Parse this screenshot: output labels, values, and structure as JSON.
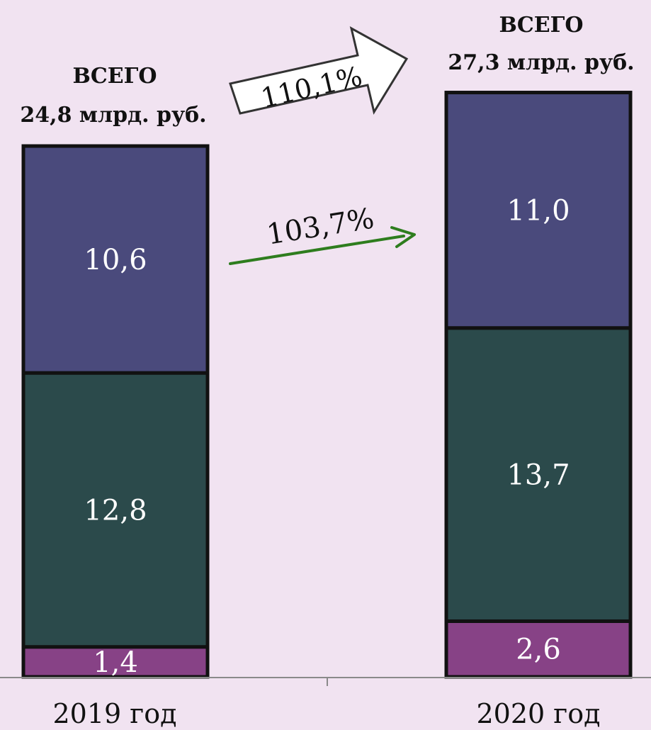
{
  "chart_data": {
    "type": "bar",
    "stacked": true,
    "categories": [
      "2019 год",
      "2020 год"
    ],
    "series": [
      {
        "values": [
          1.4,
          2.6
        ],
        "labels": [
          "1,4",
          "2,6"
        ],
        "color": "#874286"
      },
      {
        "values": [
          12.8,
          13.7
        ],
        "labels": [
          "12,8",
          "13,7"
        ],
        "color": "#2b4a4b"
      },
      {
        "values": [
          10.6,
          11.0
        ],
        "labels": [
          "10,6",
          "11,0"
        ],
        "color": "#4a4a7c"
      }
    ],
    "totals": {
      "heading": "ВСЕГО",
      "values": [
        24.8,
        27.3
      ],
      "labels": [
        "24,8 млрд. руб.",
        "27,3 млрд. руб."
      ]
    },
    "annotations": {
      "total_growth": "110,1%",
      "top_segment_growth": "103,7%"
    },
    "colors": {
      "arrow_green": "#2e7d1e",
      "bar_outline": "#111111"
    },
    "grid": false,
    "legend": "none"
  }
}
